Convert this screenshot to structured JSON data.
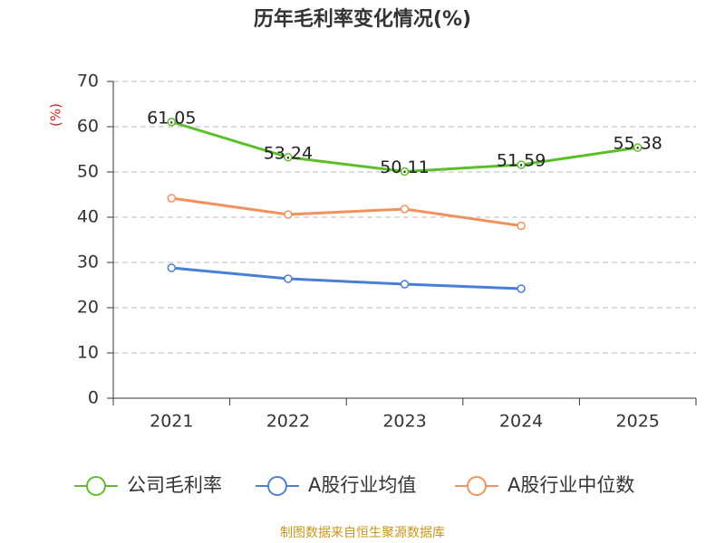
{
  "chart_data": {
    "type": "line",
    "title": "历年毛利率变化情况(%)",
    "y_label": "(%)",
    "categories": [
      "2021",
      "2022",
      "2023",
      "2024",
      "2025"
    ],
    "series": [
      {
        "name": "公司毛利率",
        "color": "#5cbf2a",
        "values": [
          61.05,
          53.24,
          50.11,
          51.59,
          55.38
        ],
        "data_labels": true
      },
      {
        "name": "A股行业均值",
        "color": "#4a7fd6",
        "values": [
          28.8,
          26.4,
          25.2,
          24.2,
          null
        ],
        "data_labels": false
      },
      {
        "name": "A股行业中位数",
        "color": "#f0925e",
        "values": [
          44.2,
          40.6,
          41.8,
          38.1,
          null
        ],
        "data_labels": false
      }
    ],
    "ylim": [
      0,
      70
    ],
    "yticks": [
      0,
      10,
      20,
      30,
      40,
      50,
      60,
      70
    ],
    "grid": true,
    "source": "制图数据来自恒生聚源数据库"
  }
}
